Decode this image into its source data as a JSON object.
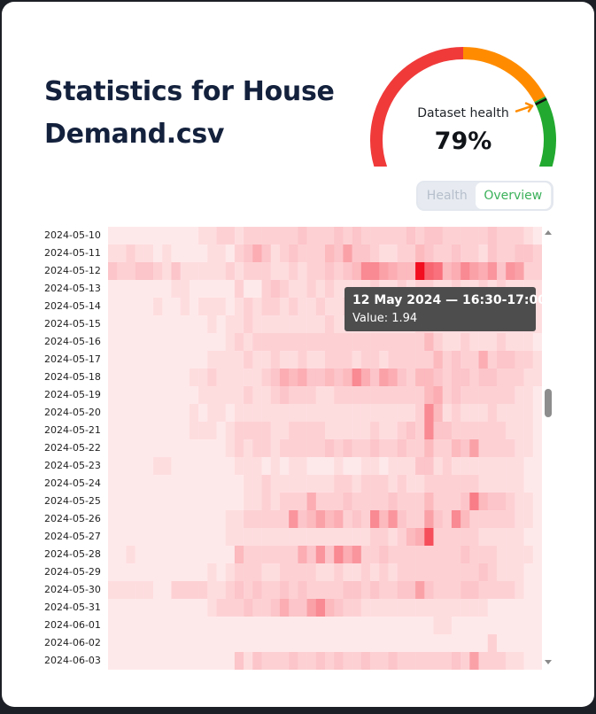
{
  "page": {
    "title": "Statistics for House Demand.csv"
  },
  "gauge": {
    "label": "Dataset health",
    "value_text": "79%",
    "value_fraction": 0.79,
    "colors": {
      "red": "#f03a3a",
      "orange": "#ff8c00",
      "green": "#22a92f",
      "needle": "#ff8c00"
    }
  },
  "tabs": [
    {
      "label": "Health",
      "active": false
    },
    {
      "label": "Overview",
      "active": true
    }
  ],
  "tooltip": {
    "title": "12 May 2024 — 16:30-17:00",
    "value": "Value: 1.94"
  },
  "chart_data": {
    "type": "heatmap",
    "rows": [
      "2024-05-10",
      "2024-05-11",
      "2024-05-12",
      "2024-05-13",
      "2024-05-14",
      "2024-05-15",
      "2024-05-16",
      "2024-05-17",
      "2024-05-18",
      "2024-05-19",
      "2024-05-20",
      "2024-05-21",
      "2024-05-22",
      "2024-05-23",
      "2024-05-24",
      "2024-05-25",
      "2024-05-26",
      "2024-05-27",
      "2024-05-28",
      "2024-05-29",
      "2024-05-30",
      "2024-05-31",
      "2024-06-01",
      "2024-06-02",
      "2024-06-03"
    ],
    "columns_count": 48,
    "color_scale": [
      "#fff5f5",
      "#f20d1f"
    ],
    "values": [
      [
        0.1,
        0.1,
        0.1,
        0.1,
        0.1,
        0.1,
        0.1,
        0.1,
        0.1,
        0.1,
        0.2,
        0.2,
        0.3,
        0.3,
        0.2,
        0.3,
        0.3,
        0.3,
        0.3,
        0.3,
        0.3,
        0.4,
        0.3,
        0.3,
        0.3,
        0.4,
        0.3,
        0.4,
        0.3,
        0.3,
        0.3,
        0.3,
        0.3,
        0.4,
        0.3,
        0.4,
        0.4,
        0.3,
        0.3,
        0.3,
        0.3,
        0.3,
        0.4,
        0.3,
        0.3,
        0.3,
        0.2,
        0.1
      ],
      [
        0.2,
        0.2,
        0.3,
        0.2,
        0.2,
        0.1,
        0.2,
        0.1,
        0.1,
        0.1,
        0.1,
        0.2,
        0.2,
        0.1,
        0.3,
        0.4,
        0.6,
        0.4,
        0.2,
        0.3,
        0.4,
        0.3,
        0.3,
        0.3,
        0.5,
        0.4,
        0.7,
        0.4,
        0.4,
        0.3,
        0.2,
        0.2,
        0.3,
        0.3,
        0.5,
        0.4,
        0.3,
        0.3,
        0.4,
        0.3,
        0.3,
        0.2,
        0.4,
        0.3,
        0.3,
        0.4,
        0.4,
        0.3
      ],
      [
        0.4,
        0.3,
        0.3,
        0.4,
        0.4,
        0.3,
        0.2,
        0.4,
        0.2,
        0.2,
        0.2,
        0.2,
        0.2,
        0.3,
        0.2,
        0.3,
        0.3,
        0.3,
        0.2,
        0.2,
        0.3,
        0.2,
        0.3,
        0.3,
        0.4,
        0.3,
        0.4,
        0.5,
        0.9,
        0.9,
        0.7,
        0.6,
        0.5,
        0.5,
        1.94,
        1.2,
        1.1,
        0.5,
        0.6,
        0.9,
        0.7,
        0.6,
        0.8,
        0.4,
        0.8,
        0.7,
        0.3,
        0.3
      ],
      [
        0.1,
        0.1,
        0.1,
        0.1,
        0.1,
        0.1,
        0.1,
        0.2,
        0.2,
        0.1,
        0.1,
        0.1,
        0.1,
        0.1,
        0.3,
        0.1,
        0.1,
        0.3,
        0.4,
        0.3,
        0.2,
        0.2,
        0.3,
        0.2,
        0.3,
        0.2,
        0.2,
        0.2,
        0.2,
        0.3,
        0.2,
        0.2,
        0.3,
        0.2,
        0.3,
        0.3,
        0.2,
        0.2,
        0.3,
        0.2,
        0.2,
        0.3,
        0.2,
        0.3,
        0.2,
        0.2,
        0.2,
        0.2
      ],
      [
        0.1,
        0.1,
        0.1,
        0.1,
        0.1,
        0.2,
        0.1,
        0.1,
        0.2,
        0.1,
        0.2,
        0.2,
        0.2,
        0.1,
        0.2,
        0.3,
        0.2,
        0.3,
        0.3,
        0.2,
        0.3,
        0.2,
        0.2,
        0.3,
        0.2,
        0.2,
        0.3,
        0.3,
        0.3,
        0.2,
        0.2,
        0.2,
        0.3,
        0.2,
        0.3,
        0.3,
        0.2,
        0.2,
        0.3,
        0.2,
        0.2,
        0.2,
        0.2,
        0.2,
        0.2,
        0.2,
        0.2,
        0.2
      ],
      [
        0.1,
        0.1,
        0.1,
        0.1,
        0.1,
        0.1,
        0.1,
        0.1,
        0.1,
        0.1,
        0.1,
        0.2,
        0.1,
        0.2,
        0.2,
        0.3,
        0.2,
        0.2,
        0.2,
        0.2,
        0.2,
        0.2,
        0.2,
        0.2,
        0.3,
        0.2,
        0.2,
        0.2,
        0.2,
        0.2,
        0.2,
        0.2,
        0.2,
        0.2,
        0.3,
        0.3,
        0.2,
        0.2,
        0.2,
        0.2,
        0.2,
        0.2,
        0.2,
        0.2,
        0.2,
        0.2,
        0.2,
        0.2
      ],
      [
        0.1,
        0.1,
        0.1,
        0.1,
        0.1,
        0.1,
        0.1,
        0.1,
        0.1,
        0.1,
        0.1,
        0.1,
        0.1,
        0.2,
        0.3,
        0.2,
        0.3,
        0.3,
        0.3,
        0.3,
        0.3,
        0.3,
        0.3,
        0.3,
        0.3,
        0.3,
        0.3,
        0.3,
        0.3,
        0.3,
        0.3,
        0.3,
        0.3,
        0.3,
        0.3,
        0.5,
        0.3,
        0.2,
        0.2,
        0.3,
        0.2,
        0.2,
        0.2,
        0.3,
        0.2,
        0.2,
        0.2,
        0.1
      ],
      [
        0.1,
        0.1,
        0.1,
        0.1,
        0.1,
        0.1,
        0.1,
        0.1,
        0.1,
        0.1,
        0.1,
        0.2,
        0.2,
        0.2,
        0.2,
        0.3,
        0.2,
        0.2,
        0.3,
        0.2,
        0.2,
        0.3,
        0.2,
        0.2,
        0.3,
        0.3,
        0.3,
        0.2,
        0.3,
        0.3,
        0.2,
        0.3,
        0.3,
        0.3,
        0.3,
        0.3,
        0.5,
        0.3,
        0.4,
        0.3,
        0.3,
        0.6,
        0.3,
        0.4,
        0.4,
        0.3,
        0.3,
        0.2
      ],
      [
        0.1,
        0.1,
        0.1,
        0.1,
        0.1,
        0.1,
        0.1,
        0.1,
        0.1,
        0.2,
        0.2,
        0.3,
        0.2,
        0.2,
        0.2,
        0.2,
        0.2,
        0.3,
        0.4,
        0.6,
        0.5,
        0.6,
        0.4,
        0.4,
        0.5,
        0.4,
        0.5,
        0.9,
        0.6,
        0.4,
        0.7,
        0.6,
        0.4,
        0.3,
        0.5,
        0.5,
        0.4,
        0.3,
        0.4,
        0.4,
        0.3,
        0.4,
        0.4,
        0.3,
        0.3,
        0.3,
        0.2,
        0.2
      ],
      [
        0.1,
        0.1,
        0.1,
        0.1,
        0.1,
        0.1,
        0.1,
        0.1,
        0.1,
        0.1,
        0.2,
        0.2,
        0.2,
        0.2,
        0.2,
        0.3,
        0.2,
        0.2,
        0.3,
        0.4,
        0.3,
        0.3,
        0.3,
        0.2,
        0.2,
        0.3,
        0.3,
        0.3,
        0.3,
        0.3,
        0.3,
        0.3,
        0.3,
        0.3,
        0.3,
        0.5,
        0.6,
        0.3,
        0.4,
        0.3,
        0.3,
        0.3,
        0.3,
        0.3,
        0.3,
        0.2,
        0.2,
        0.1
      ],
      [
        0.1,
        0.1,
        0.1,
        0.1,
        0.1,
        0.1,
        0.1,
        0.1,
        0.1,
        0.2,
        0.1,
        0.2,
        0.2,
        0.1,
        0.2,
        0.2,
        0.2,
        0.2,
        0.2,
        0.2,
        0.2,
        0.2,
        0.2,
        0.2,
        0.2,
        0.2,
        0.2,
        0.2,
        0.2,
        0.2,
        0.2,
        0.2,
        0.2,
        0.2,
        0.3,
        0.9,
        0.5,
        0.2,
        0.3,
        0.2,
        0.2,
        0.2,
        0.3,
        0.2,
        0.2,
        0.2,
        0.2,
        0.1
      ],
      [
        0.1,
        0.1,
        0.1,
        0.1,
        0.1,
        0.1,
        0.1,
        0.1,
        0.1,
        0.2,
        0.2,
        0.2,
        0.1,
        0.2,
        0.3,
        0.3,
        0.3,
        0.3,
        0.2,
        0.2,
        0.3,
        0.3,
        0.3,
        0.3,
        0.2,
        0.2,
        0.2,
        0.2,
        0.2,
        0.3,
        0.2,
        0.2,
        0.3,
        0.4,
        0.3,
        0.9,
        0.4,
        0.4,
        0.3,
        0.3,
        0.3,
        0.3,
        0.3,
        0.3,
        0.2,
        0.2,
        0.2,
        0.1
      ],
      [
        0.1,
        0.1,
        0.1,
        0.1,
        0.1,
        0.1,
        0.1,
        0.1,
        0.1,
        0.1,
        0.1,
        0.1,
        0.1,
        0.2,
        0.3,
        0.2,
        0.3,
        0.3,
        0.2,
        0.3,
        0.3,
        0.3,
        0.3,
        0.3,
        0.4,
        0.3,
        0.4,
        0.3,
        0.3,
        0.4,
        0.3,
        0.3,
        0.4,
        0.3,
        0.3,
        0.5,
        0.3,
        0.3,
        0.5,
        0.4,
        0.7,
        0.3,
        0.3,
        0.3,
        0.3,
        0.2,
        0.2,
        0.1
      ],
      [
        0.1,
        0.1,
        0.1,
        0.1,
        0.1,
        0.2,
        0.2,
        0.1,
        0.1,
        0.1,
        0.1,
        0.1,
        0.1,
        0.1,
        0.2,
        0.2,
        0.2,
        0.1,
        0.2,
        0.1,
        0.2,
        0.2,
        0.1,
        0.1,
        0.1,
        0.2,
        0.1,
        0.1,
        0.2,
        0.2,
        0.1,
        0.2,
        0.2,
        0.2,
        0.4,
        0.4,
        0.2,
        0.3,
        0.2,
        0.2,
        0.2,
        0.2,
        0.2,
        0.2,
        0.2,
        0.2,
        0.1,
        0.1
      ],
      [
        0.1,
        0.1,
        0.1,
        0.1,
        0.1,
        0.1,
        0.1,
        0.1,
        0.1,
        0.1,
        0.1,
        0.1,
        0.1,
        0.1,
        0.1,
        0.2,
        0.2,
        0.3,
        0.2,
        0.2,
        0.2,
        0.2,
        0.2,
        0.2,
        0.2,
        0.3,
        0.3,
        0.2,
        0.3,
        0.3,
        0.3,
        0.2,
        0.3,
        0.2,
        0.2,
        0.3,
        0.3,
        0.3,
        0.3,
        0.3,
        0.3,
        0.2,
        0.2,
        0.2,
        0.2,
        0.2,
        0.1,
        0.1
      ],
      [
        0.1,
        0.1,
        0.1,
        0.1,
        0.1,
        0.1,
        0.1,
        0.1,
        0.1,
        0.1,
        0.1,
        0.1,
        0.1,
        0.1,
        0.1,
        0.2,
        0.2,
        0.3,
        0.2,
        0.3,
        0.3,
        0.3,
        0.6,
        0.3,
        0.3,
        0.3,
        0.4,
        0.3,
        0.3,
        0.3,
        0.3,
        0.4,
        0.3,
        0.3,
        0.3,
        0.5,
        0.3,
        0.3,
        0.3,
        0.4,
        1.0,
        0.5,
        0.4,
        0.4,
        0.3,
        0.2,
        0.2,
        0.1
      ],
      [
        0.1,
        0.1,
        0.1,
        0.1,
        0.1,
        0.1,
        0.1,
        0.1,
        0.1,
        0.1,
        0.1,
        0.1,
        0.1,
        0.2,
        0.2,
        0.3,
        0.3,
        0.3,
        0.3,
        0.3,
        0.8,
        0.4,
        0.5,
        0.7,
        0.5,
        0.6,
        0.3,
        0.4,
        0.3,
        0.9,
        0.5,
        0.8,
        0.4,
        0.3,
        0.3,
        0.7,
        0.4,
        0.3,
        0.9,
        0.5,
        0.3,
        0.3,
        0.3,
        0.3,
        0.3,
        0.2,
        0.2,
        0.1
      ],
      [
        0.1,
        0.1,
        0.1,
        0.1,
        0.1,
        0.1,
        0.1,
        0.1,
        0.1,
        0.1,
        0.1,
        0.1,
        0.1,
        0.2,
        0.2,
        0.2,
        0.2,
        0.2,
        0.2,
        0.2,
        0.2,
        0.2,
        0.2,
        0.2,
        0.2,
        0.2,
        0.2,
        0.2,
        0.2,
        0.3,
        0.3,
        0.2,
        0.3,
        0.5,
        0.6,
        1.4,
        0.3,
        0.3,
        0.3,
        0.3,
        0.3,
        0.2,
        0.2,
        0.2,
        0.2,
        0.2,
        0.1,
        0.1
      ],
      [
        0.1,
        0.1,
        0.2,
        0.1,
        0.1,
        0.1,
        0.1,
        0.1,
        0.1,
        0.1,
        0.1,
        0.1,
        0.1,
        0.1,
        0.5,
        0.3,
        0.3,
        0.3,
        0.3,
        0.3,
        0.3,
        0.6,
        0.4,
        0.8,
        0.4,
        0.9,
        0.6,
        0.8,
        0.3,
        0.3,
        0.4,
        0.3,
        0.3,
        0.3,
        0.3,
        0.3,
        0.3,
        0.3,
        0.3,
        0.4,
        0.3,
        0.3,
        0.3,
        0.2,
        0.2,
        0.2,
        0.2,
        0.1
      ],
      [
        0.1,
        0.1,
        0.1,
        0.1,
        0.1,
        0.1,
        0.1,
        0.1,
        0.1,
        0.1,
        0.1,
        0.2,
        0.1,
        0.2,
        0.3,
        0.3,
        0.3,
        0.2,
        0.2,
        0.3,
        0.3,
        0.3,
        0.3,
        0.2,
        0.2,
        0.3,
        0.2,
        0.2,
        0.3,
        0.2,
        0.3,
        0.2,
        0.3,
        0.3,
        0.3,
        0.3,
        0.3,
        0.3,
        0.3,
        0.3,
        0.3,
        0.4,
        0.3,
        0.2,
        0.2,
        0.2,
        0.1,
        0.1
      ],
      [
        0.2,
        0.2,
        0.2,
        0.2,
        0.2,
        0.1,
        0.1,
        0.3,
        0.3,
        0.3,
        0.3,
        0.2,
        0.2,
        0.3,
        0.4,
        0.3,
        0.4,
        0.3,
        0.3,
        0.4,
        0.3,
        0.4,
        0.3,
        0.3,
        0.3,
        0.3,
        0.4,
        0.4,
        0.3,
        0.4,
        0.3,
        0.3,
        0.4,
        0.4,
        0.7,
        0.4,
        0.3,
        0.3,
        0.3,
        0.4,
        0.4,
        0.3,
        0.3,
        0.3,
        0.3,
        0.2,
        0.1,
        0.1
      ],
      [
        0.1,
        0.1,
        0.1,
        0.1,
        0.1,
        0.1,
        0.1,
        0.1,
        0.1,
        0.1,
        0.1,
        0.2,
        0.3,
        0.3,
        0.3,
        0.4,
        0.3,
        0.3,
        0.4,
        0.6,
        0.4,
        0.4,
        0.7,
        0.9,
        0.5,
        0.4,
        0.3,
        0.3,
        0.2,
        0.2,
        0.2,
        0.2,
        0.2,
        0.2,
        0.2,
        0.2,
        0.2,
        0.2,
        0.2,
        0.2,
        0.2,
        0.2,
        0.1,
        0.1,
        0.1,
        0.1,
        0.1,
        0.1
      ],
      [
        0.1,
        0.1,
        0.1,
        0.1,
        0.1,
        0.1,
        0.1,
        0.1,
        0.1,
        0.1,
        0.1,
        0.1,
        0.1,
        0.1,
        0.1,
        0.1,
        0.1,
        0.1,
        0.1,
        0.1,
        0.1,
        0.1,
        0.1,
        0.1,
        0.1,
        0.1,
        0.1,
        0.1,
        0.1,
        0.1,
        0.1,
        0.1,
        0.1,
        0.1,
        0.1,
        0.1,
        0.2,
        0.2,
        0.1,
        0.1,
        0.1,
        0.1,
        0.1,
        0.1,
        0.1,
        0.1,
        0.1,
        0.1
      ],
      [
        0.1,
        0.1,
        0.1,
        0.1,
        0.1,
        0.1,
        0.1,
        0.1,
        0.1,
        0.1,
        0.1,
        0.1,
        0.1,
        0.1,
        0.1,
        0.1,
        0.1,
        0.1,
        0.1,
        0.1,
        0.1,
        0.1,
        0.1,
        0.1,
        0.1,
        0.1,
        0.1,
        0.1,
        0.1,
        0.1,
        0.1,
        0.1,
        0.1,
        0.1,
        0.1,
        0.1,
        0.1,
        0.1,
        0.1,
        0.1,
        0.1,
        0.1,
        0.3,
        0.1,
        0.1,
        0.1,
        0.1,
        0.1
      ],
      [
        0.1,
        0.1,
        0.1,
        0.1,
        0.1,
        0.1,
        0.1,
        0.1,
        0.1,
        0.1,
        0.1,
        0.1,
        0.1,
        0.1,
        0.4,
        0.2,
        0.4,
        0.3,
        0.3,
        0.3,
        0.4,
        0.3,
        0.3,
        0.4,
        0.3,
        0.4,
        0.3,
        0.3,
        0.4,
        0.3,
        0.3,
        0.4,
        0.3,
        0.3,
        0.3,
        0.3,
        0.3,
        0.3,
        0.4,
        0.3,
        0.7,
        0.3,
        0.3,
        0.3,
        0.2,
        0.2,
        0.1,
        0.1
      ]
    ],
    "title": "",
    "xlabel": "",
    "ylabel": ""
  }
}
